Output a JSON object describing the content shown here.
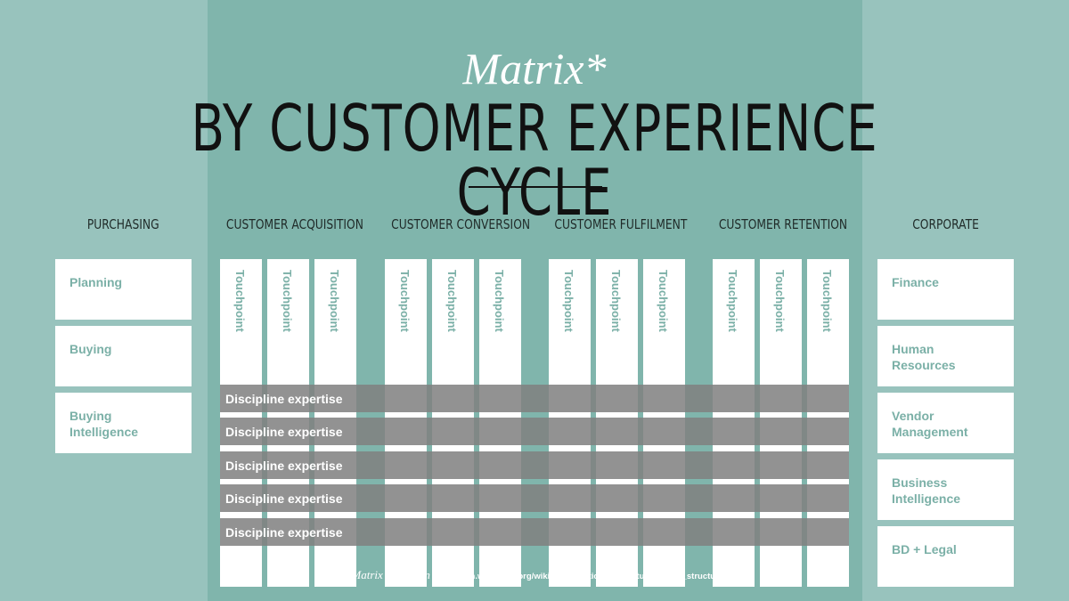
{
  "title": {
    "italic": "Matrix*",
    "main": "BY CUSTOMER EXPERIENCE CYCLE"
  },
  "columns": {
    "purchasing": "PURCHASING",
    "acquisition": "CUSTOMER ACQUISITION",
    "conversion": "CUSTOMER CONVERSION",
    "fulfilment": "CUSTOMER FULFILMENT",
    "retention": "CUSTOMER RETENTION",
    "corporate": "CORPORATE"
  },
  "purchasing_items": [
    "Planning",
    "Buying",
    "Buying Intelligence"
  ],
  "corporate_items": [
    "Finance",
    "Human Resources",
    "Vendor Management",
    "Business Intelligence",
    "BD + Legal"
  ],
  "touchpoint_label": "Touchpoint",
  "discipline_label": "Discipline expertise",
  "footnote": {
    "definition": "*Matrix definition – ",
    "url": "http://en.wikipedia.org/wiki/Organizational_structure#Matrix_structure"
  },
  "colors": {
    "background": "#98c3bd",
    "center_band": "#80b5ac",
    "accent_text": "#7bb0a7",
    "bar": "#808080"
  }
}
